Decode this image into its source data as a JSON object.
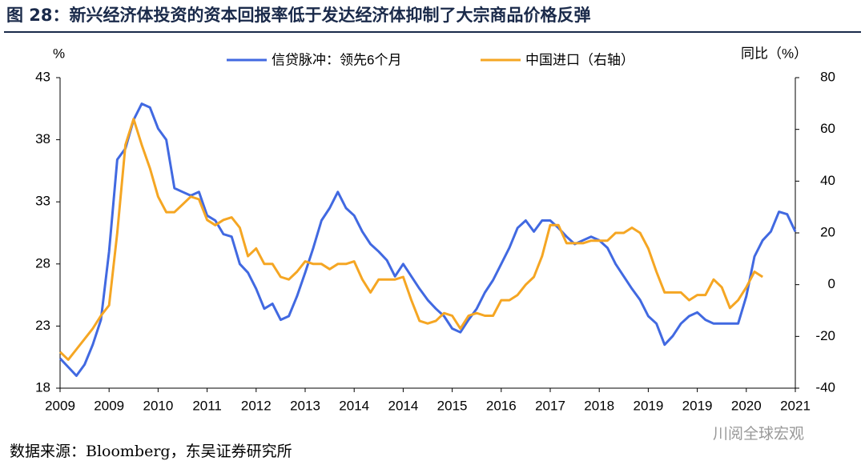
{
  "header": {
    "title": "图 28：新兴经济体投资的资本回报率低于发达经济体抑制了大宗商品价格反弹"
  },
  "chart_data": {
    "type": "line",
    "y_label": "%",
    "y2_label": "同比（%）",
    "categories": [
      "2009",
      null,
      null,
      null,
      null,
      null,
      "2009",
      null,
      null,
      null,
      null,
      null,
      "2010",
      null,
      null,
      null,
      null,
      null,
      "2011",
      null,
      null,
      null,
      null,
      null,
      "2012",
      null,
      null,
      null,
      null,
      null,
      "2013",
      null,
      null,
      null,
      null,
      null,
      "2014",
      null,
      null,
      null,
      null,
      null,
      "2014",
      null,
      null,
      null,
      null,
      null,
      "2015",
      null,
      null,
      null,
      null,
      null,
      "2016",
      null,
      null,
      null,
      null,
      null,
      "2017",
      null,
      null,
      null,
      null,
      null,
      "2018",
      null,
      null,
      null,
      null,
      null,
      "2019",
      null,
      null,
      null,
      null,
      null,
      "2019",
      null,
      null,
      null,
      null,
      null,
      "2020",
      null,
      null,
      null,
      null,
      null,
      "2021"
    ],
    "series": [
      {
        "name": "信贷脉冲：领先6个月",
        "color": "#4169e1",
        "axis": "y",
        "values": [
          20.4,
          19.7,
          19.0,
          19.9,
          21.5,
          23.5,
          29.0,
          36.4,
          37.3,
          39.6,
          40.9,
          40.6,
          38.9,
          38.0,
          34.1,
          33.8,
          33.5,
          33.8,
          31.9,
          31.5,
          30.4,
          30.2,
          28.0,
          27.3,
          26.0,
          24.4,
          24.8,
          23.5,
          23.8,
          25.4,
          27.3,
          29.3,
          31.5,
          32.5,
          33.8,
          32.5,
          31.9,
          30.6,
          29.6,
          29.0,
          28.3,
          27.0,
          28.0,
          27.0,
          26.0,
          25.1,
          24.4,
          23.8,
          22.8,
          22.5,
          23.5,
          24.4,
          25.7,
          26.7,
          28.0,
          29.3,
          30.9,
          31.5,
          30.6,
          31.5,
          31.5,
          30.9,
          30.2,
          29.6,
          29.9,
          30.2,
          29.9,
          29.3,
          28.0,
          27.0,
          26.0,
          25.1,
          23.8,
          23.2,
          21.5,
          22.2,
          23.2,
          23.8,
          24.1,
          23.5,
          23.2,
          23.2,
          23.2,
          23.2,
          25.4,
          28.6,
          29.9,
          30.6,
          32.2,
          32.0,
          30.6
        ]
      },
      {
        "name": "中国进口（右轴）",
        "color": "#f5a623",
        "axis": "y2",
        "values": [
          -26,
          -29,
          -25,
          -21,
          -17,
          -12,
          -8,
          20,
          54,
          64,
          54,
          45,
          34,
          28,
          28,
          31,
          34,
          33,
          25,
          23,
          25,
          26,
          22,
          11,
          14,
          8,
          8,
          3,
          2,
          5,
          9,
          8,
          8,
          6,
          8,
          8,
          9,
          2,
          -3,
          2,
          2,
          2,
          3,
          -6,
          -14,
          -15,
          -14,
          -11,
          -12,
          -17,
          -12,
          -11,
          -12,
          -12,
          -6,
          -6,
          -4,
          0,
          3,
          11,
          23,
          23,
          16,
          16,
          16,
          17,
          17,
          17,
          20,
          20,
          22,
          20,
          14,
          5,
          -3,
          -3,
          -3,
          -6,
          -4,
          -4,
          2,
          -1,
          -9,
          -6,
          -1,
          5,
          3,
          null,
          null,
          null,
          null
        ]
      }
    ],
    "ylim": [
      18,
      43
    ],
    "yticks": [
      18,
      23,
      28,
      33,
      38,
      43
    ],
    "y2lim": [
      -40,
      80
    ],
    "y2ticks": [
      -40,
      -20,
      0,
      20,
      40,
      60,
      80
    ]
  },
  "footer": {
    "source": "数据来源：Bloomberg，东吴证券研究所",
    "watermark": "川阅全球宏观"
  }
}
